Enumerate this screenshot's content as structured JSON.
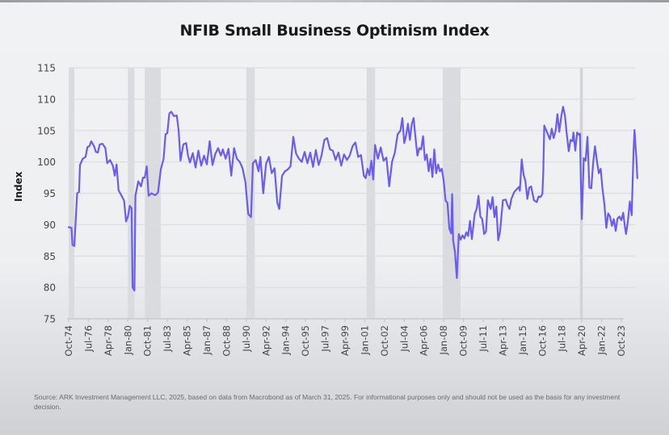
{
  "chart_data": {
    "type": "line",
    "title": "NFIB Small Business Optimism Index",
    "xlabel": "",
    "ylabel": "Index",
    "ylim": [
      75,
      115
    ],
    "yticks": [
      75,
      80,
      85,
      90,
      95,
      100,
      105,
      110,
      115
    ],
    "grid": true,
    "legend": "none",
    "x_tick_labels": [
      "Oct-74",
      "Jul-76",
      "Apr-78",
      "Jan-80",
      "Oct-81",
      "Jul-83",
      "Apr-85",
      "Jan-87",
      "Oct-88",
      "Jul-90",
      "Apr-92",
      "Jan-94",
      "Oct-95",
      "Jul-97",
      "Apr-99",
      "Jan-01",
      "Oct-02",
      "Jul-04",
      "Apr-06",
      "Jan-08",
      "Oct-09",
      "Jul-11",
      "Apr-13",
      "Jan-15",
      "Oct-16",
      "Jul-18",
      "Apr-20",
      "Jan-22",
      "Oct-23"
    ],
    "x_start": "1974-10",
    "x_end": "2025-03",
    "recessions": [
      {
        "start": "1974-10",
        "end": "1975-03"
      },
      {
        "start": "1980-01",
        "end": "1980-07"
      },
      {
        "start": "1981-07",
        "end": "1982-11"
      },
      {
        "start": "1990-07",
        "end": "1991-03"
      },
      {
        "start": "2001-03",
        "end": "2001-11"
      },
      {
        "start": "2007-12",
        "end": "2009-06"
      },
      {
        "start": "2020-02",
        "end": "2020-04"
      }
    ],
    "series": [
      {
        "name": "NFIB Small Business Optimism Index",
        "color": "#6b5cf0",
        "points": [
          [
            "1974-10",
            89.6
          ],
          [
            "1975-01",
            89.5
          ],
          [
            "1975-02",
            86.8
          ],
          [
            "1975-04",
            86.6
          ],
          [
            "1975-07",
            95.0
          ],
          [
            "1975-09",
            95.2
          ],
          [
            "1975-10",
            99.5
          ],
          [
            "1976-01",
            100.5
          ],
          [
            "1976-04",
            100.8
          ],
          [
            "1976-06",
            102.4
          ],
          [
            "1976-08",
            102.5
          ],
          [
            "1976-10",
            103.3
          ],
          [
            "1977-01",
            102.5
          ],
          [
            "1977-03",
            101.6
          ],
          [
            "1977-05",
            101.5
          ],
          [
            "1977-07",
            102.8
          ],
          [
            "1977-10",
            102.9
          ],
          [
            "1978-01",
            102.2
          ],
          [
            "1978-03",
            99.8
          ],
          [
            "1978-06",
            100.3
          ],
          [
            "1978-09",
            99.4
          ],
          [
            "1978-11",
            97.8
          ],
          [
            "1979-01",
            99.6
          ],
          [
            "1979-03",
            95.5
          ],
          [
            "1979-06",
            94.7
          ],
          [
            "1979-09",
            93.8
          ],
          [
            "1979-11",
            90.5
          ],
          [
            "1980-01",
            91.3
          ],
          [
            "1980-03",
            93.0
          ],
          [
            "1980-05",
            92.6
          ],
          [
            "1980-06",
            80.0
          ],
          [
            "1980-08",
            79.5
          ],
          [
            "1980-09",
            94.6
          ],
          [
            "1980-12",
            96.9
          ],
          [
            "1981-03",
            96.1
          ],
          [
            "1981-05",
            97.5
          ],
          [
            "1981-07",
            97.5
          ],
          [
            "1981-09",
            99.3
          ],
          [
            "1981-11",
            94.6
          ],
          [
            "1982-02",
            95.0
          ],
          [
            "1982-06",
            94.7
          ],
          [
            "1982-09",
            95.1
          ],
          [
            "1982-12",
            98.8
          ],
          [
            "1983-03",
            100.5
          ],
          [
            "1983-05",
            104.4
          ],
          [
            "1983-07",
            104.6
          ],
          [
            "1983-09",
            107.7
          ],
          [
            "1983-11",
            108.0
          ],
          [
            "1984-02",
            107.3
          ],
          [
            "1984-05",
            107.4
          ],
          [
            "1984-07",
            105.0
          ],
          [
            "1984-09",
            100.2
          ],
          [
            "1984-12",
            102.8
          ],
          [
            "1985-03",
            103.0
          ],
          [
            "1985-05",
            101.0
          ],
          [
            "1985-07",
            99.9
          ],
          [
            "1985-10",
            101.4
          ],
          [
            "1986-01",
            99.1
          ],
          [
            "1986-04",
            101.8
          ],
          [
            "1986-07",
            99.4
          ],
          [
            "1986-10",
            101.0
          ],
          [
            "1987-01",
            99.6
          ],
          [
            "1987-04",
            103.3
          ],
          [
            "1987-07",
            99.5
          ],
          [
            "1987-10",
            101.3
          ],
          [
            "1988-01",
            102.2
          ],
          [
            "1988-04",
            101.0
          ],
          [
            "1988-06",
            102.0
          ],
          [
            "1988-09",
            100.5
          ],
          [
            "1988-12",
            102.1
          ],
          [
            "1989-03",
            97.8
          ],
          [
            "1989-06",
            102.2
          ],
          [
            "1989-09",
            100.5
          ],
          [
            "1989-12",
            100.0
          ],
          [
            "1990-03",
            99.0
          ],
          [
            "1990-06",
            96.8
          ],
          [
            "1990-09",
            91.7
          ],
          [
            "1990-12",
            91.2
          ],
          [
            "1991-02",
            99.8
          ],
          [
            "1991-05",
            100.3
          ],
          [
            "1991-08",
            98.5
          ],
          [
            "1991-10",
            100.8
          ],
          [
            "1992-01",
            95.0
          ],
          [
            "1992-04",
            99.7
          ],
          [
            "1992-07",
            100.8
          ],
          [
            "1992-10",
            98.2
          ],
          [
            "1993-01",
            99.0
          ],
          [
            "1993-04",
            93.5
          ],
          [
            "1993-06",
            92.5
          ],
          [
            "1993-09",
            97.8
          ],
          [
            "1993-12",
            98.5
          ],
          [
            "1994-03",
            98.8
          ],
          [
            "1994-06",
            99.3
          ],
          [
            "1994-09",
            104.0
          ],
          [
            "1994-12",
            101.3
          ],
          [
            "1995-03",
            100.5
          ],
          [
            "1995-06",
            100.0
          ],
          [
            "1995-09",
            101.6
          ],
          [
            "1995-12",
            99.8
          ],
          [
            "1996-03",
            101.5
          ],
          [
            "1996-06",
            99.2
          ],
          [
            "1996-09",
            101.9
          ],
          [
            "1996-12",
            99.5
          ],
          [
            "1997-03",
            101.0
          ],
          [
            "1997-06",
            103.5
          ],
          [
            "1997-09",
            103.8
          ],
          [
            "1997-12",
            102.0
          ],
          [
            "1998-03",
            101.8
          ],
          [
            "1998-06",
            100.3
          ],
          [
            "1998-09",
            101.5
          ],
          [
            "1998-12",
            99.4
          ],
          [
            "1999-03",
            101.2
          ],
          [
            "1999-06",
            100.3
          ],
          [
            "1999-09",
            101.0
          ],
          [
            "1999-12",
            102.5
          ],
          [
            "2000-03",
            103.1
          ],
          [
            "2000-06",
            100.8
          ],
          [
            "2000-09",
            101.1
          ],
          [
            "2000-12",
            97.8
          ],
          [
            "2001-02",
            97.4
          ],
          [
            "2001-04",
            98.9
          ],
          [
            "2001-06",
            97.9
          ],
          [
            "2001-08",
            100.2
          ],
          [
            "2001-10",
            97.2
          ],
          [
            "2001-12",
            102.7
          ],
          [
            "2002-03",
            100.5
          ],
          [
            "2002-06",
            102.3
          ],
          [
            "2002-09",
            100.2
          ],
          [
            "2002-12",
            100.7
          ],
          [
            "2003-03",
            96.1
          ],
          [
            "2003-06",
            100.0
          ],
          [
            "2003-09",
            101.5
          ],
          [
            "2003-12",
            104.4
          ],
          [
            "2004-03",
            105.0
          ],
          [
            "2004-05",
            107.0
          ],
          [
            "2004-07",
            103.0
          ],
          [
            "2004-09",
            104.2
          ],
          [
            "2004-11",
            106.1
          ],
          [
            "2005-01",
            103.5
          ],
          [
            "2005-03",
            106.0
          ],
          [
            "2005-05",
            107.0
          ],
          [
            "2005-07",
            103.9
          ],
          [
            "2005-09",
            101.0
          ],
          [
            "2005-11",
            102.2
          ],
          [
            "2006-01",
            102.0
          ],
          [
            "2006-03",
            104.1
          ],
          [
            "2006-05",
            100.3
          ],
          [
            "2006-07",
            101.2
          ],
          [
            "2006-09",
            98.5
          ],
          [
            "2006-11",
            100.5
          ],
          [
            "2007-01",
            97.6
          ],
          [
            "2007-03",
            102.0
          ],
          [
            "2007-05",
            98.2
          ],
          [
            "2007-07",
            99.6
          ],
          [
            "2007-09",
            98.5
          ],
          [
            "2007-11",
            98.9
          ],
          [
            "2008-01",
            97.0
          ],
          [
            "2008-03",
            93.8
          ],
          [
            "2008-05",
            93.5
          ],
          [
            "2008-07",
            89.4
          ],
          [
            "2008-09",
            88.6
          ],
          [
            "2008-10",
            94.9
          ],
          [
            "2008-11",
            87.5
          ],
          [
            "2009-01",
            85.6
          ],
          [
            "2009-03",
            81.5
          ],
          [
            "2009-05",
            88.5
          ],
          [
            "2009-07",
            87.6
          ],
          [
            "2009-09",
            88.3
          ],
          [
            "2009-11",
            87.8
          ],
          [
            "2010-01",
            88.8
          ],
          [
            "2010-03",
            88.2
          ],
          [
            "2010-05",
            90.6
          ],
          [
            "2010-07",
            87.7
          ],
          [
            "2010-10",
            91.7
          ],
          [
            "2010-12",
            92.5
          ],
          [
            "2011-02",
            94.6
          ],
          [
            "2011-04",
            91.3
          ],
          [
            "2011-06",
            90.9
          ],
          [
            "2011-08",
            88.5
          ],
          [
            "2011-10",
            88.9
          ],
          [
            "2011-12",
            93.9
          ],
          [
            "2012-03",
            92.5
          ],
          [
            "2012-05",
            94.4
          ],
          [
            "2012-07",
            91.2
          ],
          [
            "2012-09",
            92.9
          ],
          [
            "2012-11",
            87.5
          ],
          [
            "2013-01",
            88.9
          ],
          [
            "2013-04",
            93.9
          ],
          [
            "2013-07",
            94.0
          ],
          [
            "2013-09",
            93.1
          ],
          [
            "2013-11",
            92.5
          ],
          [
            "2014-01",
            94.1
          ],
          [
            "2014-04",
            95.2
          ],
          [
            "2014-07",
            95.7
          ],
          [
            "2014-09",
            96.0
          ],
          [
            "2014-10",
            95.4
          ],
          [
            "2014-12",
            100.4
          ],
          [
            "2015-02",
            98.0
          ],
          [
            "2015-04",
            96.9
          ],
          [
            "2015-06",
            94.1
          ],
          [
            "2015-08",
            95.9
          ],
          [
            "2015-10",
            96.1
          ],
          [
            "2016-01",
            93.9
          ],
          [
            "2016-04",
            93.6
          ],
          [
            "2016-06",
            94.5
          ],
          [
            "2016-08",
            94.4
          ],
          [
            "2016-10",
            94.9
          ],
          [
            "2016-11",
            98.4
          ],
          [
            "2016-12",
            105.8
          ],
          [
            "2017-03",
            104.7
          ],
          [
            "2017-06",
            103.6
          ],
          [
            "2017-08",
            105.3
          ],
          [
            "2017-10",
            103.8
          ],
          [
            "2017-12",
            104.9
          ],
          [
            "2018-02",
            107.6
          ],
          [
            "2018-04",
            104.8
          ],
          [
            "2018-06",
            107.2
          ],
          [
            "2018-08",
            108.8
          ],
          [
            "2018-10",
            107.4
          ],
          [
            "2018-12",
            104.4
          ],
          [
            "2019-02",
            101.7
          ],
          [
            "2019-04",
            103.5
          ],
          [
            "2019-06",
            103.3
          ],
          [
            "2019-07",
            104.7
          ],
          [
            "2019-09",
            101.8
          ],
          [
            "2019-11",
            104.7
          ],
          [
            "2020-01",
            104.3
          ],
          [
            "2020-02",
            104.5
          ],
          [
            "2020-03",
            96.4
          ],
          [
            "2020-04",
            90.9
          ],
          [
            "2020-06",
            100.6
          ],
          [
            "2020-08",
            100.2
          ],
          [
            "2020-10",
            104.0
          ],
          [
            "2020-12",
            95.9
          ],
          [
            "2021-02",
            95.8
          ],
          [
            "2021-04",
            99.8
          ],
          [
            "2021-06",
            102.5
          ],
          [
            "2021-08",
            100.1
          ],
          [
            "2021-10",
            98.2
          ],
          [
            "2021-12",
            98.9
          ],
          [
            "2022-02",
            95.7
          ],
          [
            "2022-04",
            93.2
          ],
          [
            "2022-06",
            89.5
          ],
          [
            "2022-08",
            91.8
          ],
          [
            "2022-10",
            91.3
          ],
          [
            "2022-12",
            89.8
          ],
          [
            "2023-02",
            90.9
          ],
          [
            "2023-04",
            89.0
          ],
          [
            "2023-06",
            91.0
          ],
          [
            "2023-08",
            91.3
          ],
          [
            "2023-10",
            90.7
          ],
          [
            "2023-12",
            91.9
          ],
          [
            "2024-02",
            89.4
          ],
          [
            "2024-03",
            88.5
          ],
          [
            "2024-05",
            90.5
          ],
          [
            "2024-07",
            93.7
          ],
          [
            "2024-09",
            91.5
          ],
          [
            "2024-11",
            101.7
          ],
          [
            "2024-12",
            105.1
          ],
          [
            "2025-01",
            102.8
          ],
          [
            "2025-02",
            100.7
          ],
          [
            "2025-03",
            97.4
          ]
        ]
      }
    ]
  },
  "footer": {
    "source": "Source: ARK Investment Management LLC, 2025, based on data from Macrobond as of March 31, 2025. For informational purposes only and should not be used as the basis for any investment decision."
  }
}
